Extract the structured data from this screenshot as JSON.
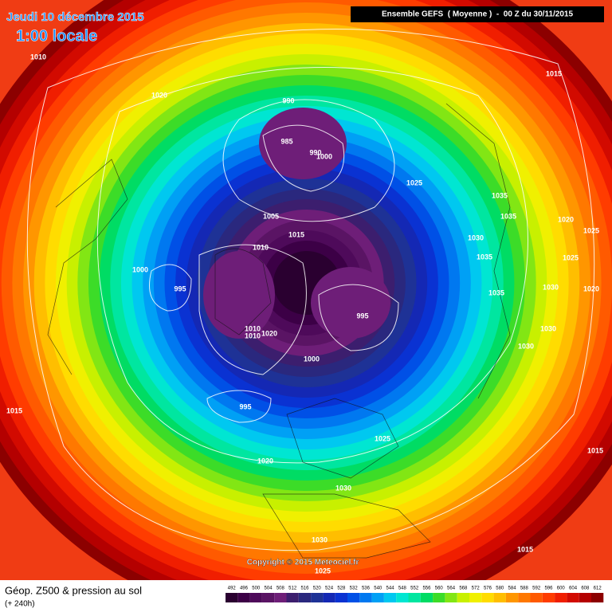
{
  "header": {
    "date": "Jeudi 10 décembre 2015",
    "time": "1:00 locale",
    "model": "Ensemble GEFS  ( Moyenne )  -  00 Z du 30/11/2015"
  },
  "isobar_labels": [
    "1010",
    "1020",
    "990",
    "985",
    "990",
    "1000",
    "1025",
    "1015",
    "1035",
    "1035",
    "1020",
    "1025",
    "1030",
    "1035",
    "1025",
    "1005",
    "1015",
    "1010",
    "1000",
    "995",
    "1035",
    "1030",
    "1020",
    "995",
    "1010",
    "1020",
    "1010",
    "1030",
    "1030",
    "1000",
    "995",
    "1015",
    "1025",
    "1020",
    "1015",
    "1030",
    "1030",
    "1015",
    "1025"
  ],
  "copyright": "Copyright © 2015 Meteociel.fr",
  "footer": {
    "title": "Géop. Z500 & pression au sol",
    "lead": "(+ 240h)"
  },
  "legend": {
    "values": [
      492,
      496,
      500,
      504,
      508,
      512,
      516,
      520,
      524,
      528,
      532,
      536,
      540,
      544,
      548,
      552,
      556,
      560,
      564,
      568,
      572,
      576,
      580,
      584,
      588,
      592,
      596,
      600,
      604,
      608,
      612
    ],
    "colors": [
      "#2a0030",
      "#3c0046",
      "#4e0a5a",
      "#5a1464",
      "#6e1e78",
      "#3c1e6e",
      "#2a287e",
      "#1e3296",
      "#1428b4",
      "#0a32d2",
      "#0050e6",
      "#0078f0",
      "#00a0f5",
      "#00c8f0",
      "#00e6d2",
      "#00e6a0",
      "#00dc64",
      "#3cdc28",
      "#82e614",
      "#c8f000",
      "#f0f000",
      "#ffdc00",
      "#ffbe00",
      "#ff9600",
      "#ff7800",
      "#ff5a00",
      "#ff3c00",
      "#f01e00",
      "#d20a00",
      "#b40000",
      "#8c0000"
    ]
  }
}
